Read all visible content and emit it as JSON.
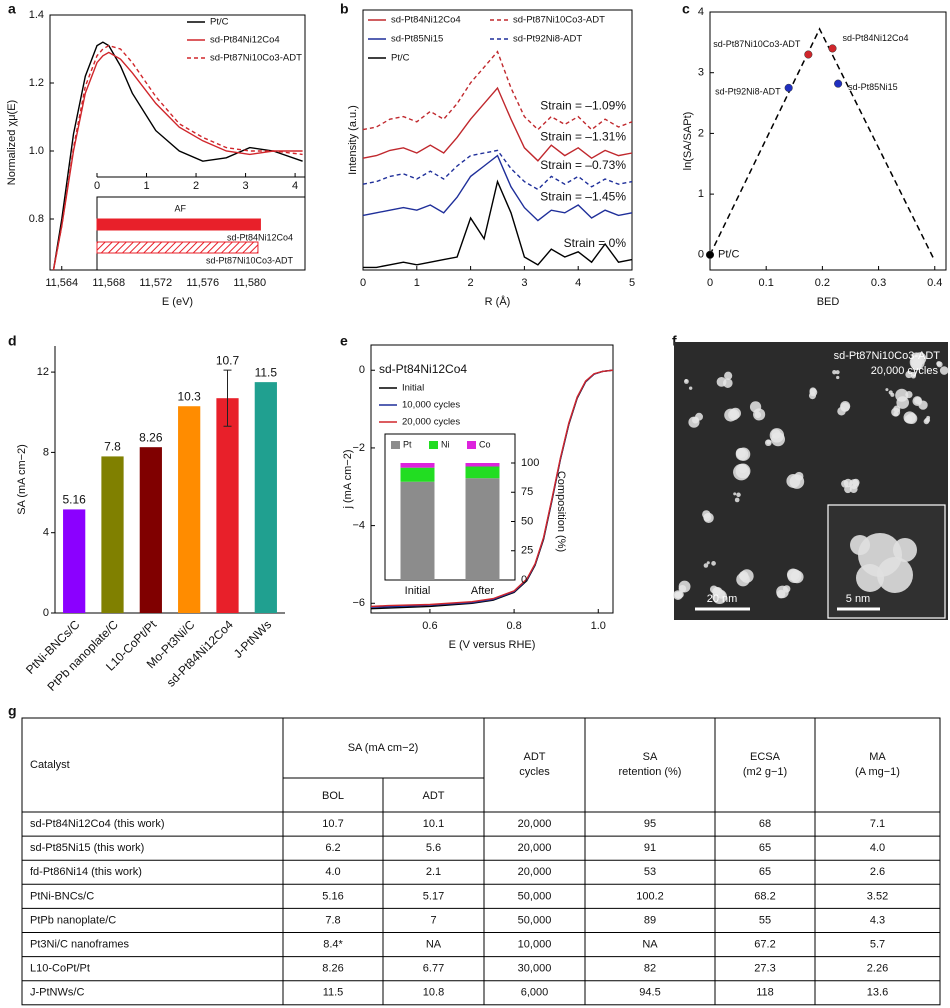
{
  "chart_data": [
    {
      "panel": "a",
      "type": "line",
      "xlabel": "E (eV)",
      "ylabel": "Normalized χμ(E)",
      "legend": "upper right",
      "x": [
        11563.3,
        11564,
        11565,
        11566,
        11567,
        11567.5,
        11568,
        11569,
        11570,
        11572,
        11574,
        11576,
        11578,
        11580,
        11582,
        11584.5
      ],
      "xlim": [
        11563,
        11584.7
      ],
      "xticks": [
        {
          "value": 11564,
          "label": "11,564"
        },
        {
          "value": 11568,
          "label": "11,568"
        },
        {
          "value": 11572,
          "label": "11,572"
        },
        {
          "value": 11576,
          "label": "11,576"
        },
        {
          "value": 11580,
          "label": "11,580"
        }
      ],
      "ylim": [
        0.65,
        1.4
      ],
      "yticks": [
        0.8,
        {
          "value": 1,
          "label": "1.0"
        },
        1.2,
        1.4
      ],
      "series": [
        {
          "name": "Pt/C",
          "color": "#000000",
          "style": "solid",
          "values": [
            0.65,
            0.8,
            1.05,
            1.22,
            1.31,
            1.32,
            1.31,
            1.25,
            1.17,
            1.06,
            1.0,
            0.97,
            0.98,
            1.01,
            1.0,
            0.97
          ]
        },
        {
          "name": "sd-Pt84Ni12Co4",
          "color": "#d0262b",
          "style": "solid",
          "values": [
            0.65,
            0.78,
            1.0,
            1.17,
            1.26,
            1.28,
            1.29,
            1.27,
            1.23,
            1.14,
            1.07,
            1.03,
            1.0,
            0.99,
            1.0,
            1.0
          ]
        },
        {
          "name": "sd-Pt87Ni10Co3-ADT",
          "color": "#d0262b",
          "style": "dashed",
          "values": [
            0.65,
            0.78,
            1.01,
            1.19,
            1.28,
            1.3,
            1.31,
            1.3,
            1.26,
            1.16,
            1.08,
            1.04,
            1.01,
            1.0,
            1.0,
            0.99
          ]
        }
      ]
    },
    {
      "type": "hbar",
      "title": "AF",
      "categories": [
        "sd-Pt84Ni12Co4",
        "sd-Pt87Ni10Co3-ADT"
      ],
      "values": [
        3.3,
        3.25
      ],
      "color": "#e8202a",
      "styles": [
        "solid",
        "hatched"
      ],
      "xlim": [
        0,
        4.2
      ],
      "xticks": [
        0,
        1,
        2,
        3,
        4
      ]
    },
    {
      "panel": "b",
      "type": "line",
      "xlabel": "R (Å)",
      "ylabel": "Intensity (a.u.)",
      "legend": "upper left",
      "x": [
        0,
        0.25,
        0.5,
        0.75,
        1,
        1.25,
        1.5,
        1.75,
        2,
        2.25,
        2.5,
        2.75,
        3,
        3.25,
        3.5,
        3.75,
        4,
        4.25,
        4.5,
        4.75,
        5
      ],
      "xlim": [
        0,
        5
      ],
      "xticks": [
        0,
        1,
        2,
        3,
        4,
        5
      ],
      "ylim": [
        0,
        10
      ],
      "series": [
        {
          "name": "sd-Pt84Ni12Co4",
          "color": "#c0282d",
          "style": "solid",
          "annotation": "Strain = –1.31%",
          "values": [
            4.3,
            4.4,
            4.6,
            4.7,
            4.5,
            4.8,
            4.5,
            5.1,
            5.8,
            6.4,
            7.0,
            5.8,
            4.7,
            4.2,
            4.8,
            4.4,
            4.7,
            4.3,
            4.6,
            4.4,
            4.5
          ]
        },
        {
          "name": "sd-Pt87Ni10Co3-ADT",
          "color": "#c0282d",
          "style": "dashed",
          "annotation": "Strain = –1.09%",
          "values": [
            5.4,
            5.5,
            5.8,
            5.9,
            5.7,
            6.1,
            5.8,
            6.4,
            7.2,
            7.8,
            8.4,
            7.0,
            5.9,
            5.4,
            5.9,
            5.6,
            5.9,
            5.4,
            5.8,
            5.5,
            5.7
          ]
        },
        {
          "name": "sd-Pt85Ni15",
          "color": "#1f2f9a",
          "style": "solid",
          "annotation": "Strain = –1.45%",
          "values": [
            2.1,
            2.2,
            2.3,
            2.4,
            2.3,
            2.5,
            2.2,
            2.8,
            3.6,
            4.0,
            4.4,
            3.2,
            2.4,
            1.9,
            2.3,
            2.2,
            2.5,
            2.0,
            2.3,
            2.1,
            2.2
          ]
        },
        {
          "name": "sd-Pt92Ni8-ADT",
          "color": "#1f2f9a",
          "style": "dashed",
          "annotation": "Strain = –0.73%",
          "values": [
            3.3,
            3.4,
            3.6,
            3.7,
            3.5,
            3.8,
            3.5,
            4.0,
            4.4,
            4.5,
            4.6,
            3.9,
            3.4,
            3.1,
            3.6,
            3.3,
            3.6,
            3.2,
            3.5,
            3.3,
            3.4
          ]
        },
        {
          "name": "Pt/C",
          "color": "#000000",
          "style": "solid",
          "annotation": "Strain = 0%",
          "values": [
            0.1,
            0.1,
            0.2,
            0.3,
            0.2,
            0.3,
            0.4,
            0.5,
            2.0,
            1.2,
            3.4,
            2.2,
            0.5,
            0.2,
            0.8,
            0.5,
            0.7,
            0.3,
            1.0,
            0.3,
            0.4
          ]
        }
      ]
    },
    {
      "panel": "c",
      "type": "scatter",
      "xlabel": "BED",
      "ylabel": "ln(SA/SAPt)",
      "labels": [
        "Pt/C",
        "sd-Pt87Ni10Co3-ADT",
        "sd-Pt84Ni12Co4",
        "sd-Pt92Ni8-ADT",
        "sd-Pt85Ni15"
      ],
      "x": [
        0,
        0.175,
        0.218,
        0.14,
        0.228
      ],
      "values": [
        0,
        3.3,
        3.4,
        2.75,
        2.82
      ],
      "colors": [
        "#000000",
        "#d0262b",
        "#d0262b",
        "#1f2fc0",
        "#1f2fc0"
      ],
      "trend": {
        "x": [
          0,
          0.195,
          0.4
        ],
        "values": [
          0,
          3.72,
          -0.1
        ],
        "style": "dashed",
        "color": "#000000"
      },
      "xlim": [
        0,
        0.42
      ],
      "xticks": [
        0,
        0.1,
        0.2,
        0.3,
        0.4
      ],
      "ylim": [
        -0.25,
        4
      ],
      "yticks": [
        0,
        1,
        2,
        3,
        4
      ]
    },
    {
      "panel": "d",
      "type": "bar",
      "ylabel": "SA (mA cm−2)",
      "categories": [
        "PtNi-BNCs/C",
        "PtPb nanoplate/C",
        "L10-CoPt/Pt",
        "Mo-Pt3Ni/C",
        "sd-Pt84Ni12Co4",
        "J-PtNWs"
      ],
      "values": [
        5.16,
        7.8,
        8.26,
        10.3,
        10.7,
        11.5
      ],
      "errors": [
        null,
        null,
        null,
        null,
        1.4,
        null
      ],
      "colors": [
        "#8b00ff",
        "#808000",
        "#800000",
        "#ff8c00",
        "#e8202a",
        "#20a090"
      ],
      "ylim": [
        0,
        13.3
      ],
      "yticks": [
        0,
        4,
        8,
        12
      ]
    },
    {
      "panel": "e",
      "type": "line",
      "title": "sd-Pt84Ni12Co4",
      "xlabel": "E (V versus RHE)",
      "ylabel": "j (mA cm−2)",
      "legend": "upper left",
      "x": [
        0.46,
        0.5,
        0.6,
        0.7,
        0.75,
        0.8,
        0.83,
        0.85,
        0.87,
        0.89,
        0.91,
        0.93,
        0.95,
        0.97,
        0.99,
        1.01,
        1.035
      ],
      "xlim": [
        0.46,
        1.035
      ],
      "xticks": [
        0.6,
        0.8,
        {
          "value": 1,
          "label": "1.0"
        }
      ],
      "ylim": [
        -6.25,
        0.65
      ],
      "yticks": [
        0,
        {
          "value": -2,
          "label": "−2"
        },
        {
          "value": -4,
          "label": "−4"
        },
        {
          "value": -6,
          "label": "−6"
        }
      ],
      "series": [
        {
          "name": "Initial",
          "color": "#000000",
          "style": "solid",
          "values": [
            -6.14,
            -6.12,
            -6.08,
            -6.0,
            -5.92,
            -5.72,
            -5.42,
            -5.02,
            -4.35,
            -3.35,
            -2.3,
            -1.4,
            -0.72,
            -0.3,
            -0.1,
            -0.03,
            0
          ]
        },
        {
          "name": "10,000 cycles",
          "color": "#1f2f9a",
          "style": "solid",
          "values": [
            -6.1,
            -6.09,
            -6.05,
            -5.98,
            -5.9,
            -5.7,
            -5.4,
            -5.0,
            -4.32,
            -3.32,
            -2.28,
            -1.38,
            -0.7,
            -0.29,
            -0.1,
            -0.03,
            0
          ]
        },
        {
          "name": "20,000 cycles",
          "color": "#d0262b",
          "style": "solid",
          "values": [
            -6.08,
            -6.06,
            -6.03,
            -5.96,
            -5.88,
            -5.68,
            -5.38,
            -4.98,
            -4.3,
            -3.3,
            -2.26,
            -1.36,
            -0.69,
            -0.28,
            -0.09,
            -0.03,
            0
          ]
        }
      ]
    },
    {
      "type": "stacked_bar",
      "ylabel": "Composition (%)",
      "categories": [
        "Initial",
        "After"
      ],
      "ylim": [
        0,
        100
      ],
      "yticks": [
        0,
        25,
        50,
        75,
        100
      ],
      "yaxis": "right",
      "series": [
        {
          "name": "Pt",
          "color": "#8c8c8c",
          "values": [
            84,
            87
          ]
        },
        {
          "name": "Ni",
          "color": "#22dd22",
          "values": [
            12,
            10
          ]
        },
        {
          "name": "Co",
          "color": "#dd22dd",
          "values": [
            4,
            3
          ]
        }
      ]
    }
  ],
  "micrograph": {
    "panel": "f",
    "label": "sd-Pt87Ni10Co3-ADT",
    "sublabel": "20,000 cycles",
    "scale_bar": "20 nm",
    "inset_scale_bar": "5 nm"
  },
  "table": {
    "panel": "g",
    "header": {
      "catalyst": "Catalyst",
      "sa": "SA (mA cm−2)",
      "bol": "BOL",
      "adt": "ADT",
      "cycles": [
        "ADT",
        "cycles"
      ],
      "retention": [
        "SA",
        "retention (%)"
      ],
      "ecsa": [
        "ECSA",
        "(m2 g−1)"
      ],
      "ma": [
        "MA",
        "(A mg−1)"
      ]
    },
    "rows": [
      [
        "sd-Pt84Ni12Co4 (this work)",
        "10.7",
        "10.1",
        "20,000",
        "95",
        "68",
        "7.1"
      ],
      [
        "sd-Pt85Ni15 (this work)",
        "6.2",
        "5.6",
        "20,000",
        "91",
        "65",
        "4.0"
      ],
      [
        "fd-Pt86Ni14 (this work)",
        "4.0",
        "2.1",
        "20,000",
        "53",
        "65",
        "2.6"
      ],
      [
        "PtNi-BNCs/C",
        "5.16",
        "5.17",
        "50,000",
        "100.2",
        "68.2",
        "3.52"
      ],
      [
        "PtPb nanoplate/C",
        "7.8",
        "7",
        "50,000",
        "89",
        "55",
        "4.3"
      ],
      [
        "Pt3Ni/C nanoframes",
        "8.4*",
        "NA",
        "10,000",
        "NA",
        "67.2",
        "5.7"
      ],
      [
        "L10-CoPt/Pt",
        "8.26",
        "6.77",
        "30,000",
        "82",
        "27.3",
        "2.26"
      ],
      [
        "J-PtNWs/C",
        "11.5",
        "10.8",
        "6,000",
        "94.5",
        "118",
        "13.6"
      ]
    ]
  }
}
